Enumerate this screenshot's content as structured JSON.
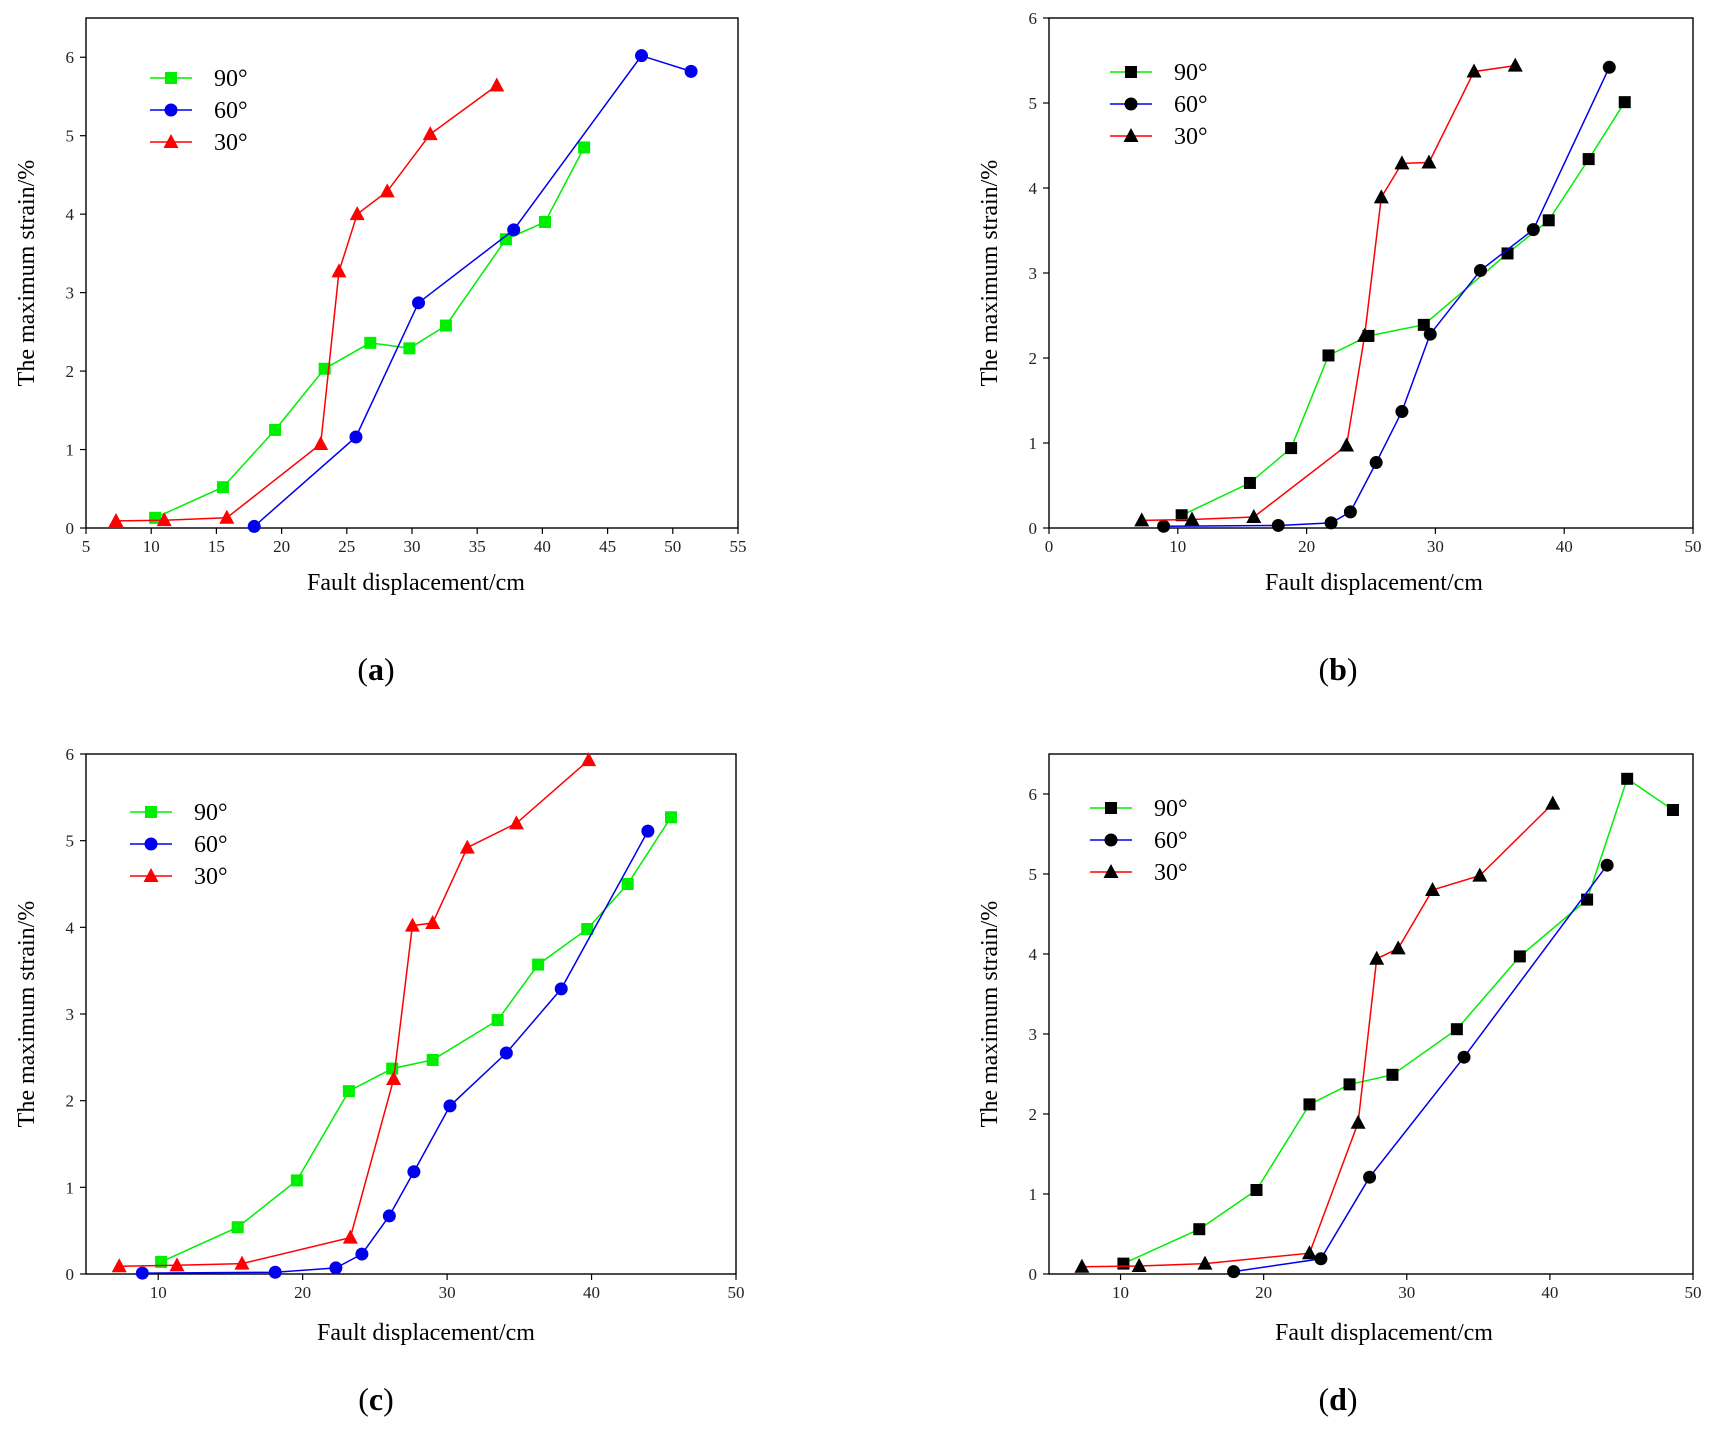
{
  "chart_data": [
    {
      "panel": "a",
      "type": "line",
      "caption_letter": "a",
      "xlabel": "Fault displacement/cm",
      "ylabel": "The maximum strain/%",
      "xlim": [
        5,
        55
      ],
      "ylim": [
        0,
        6.5
      ],
      "xticks": [
        5,
        10,
        15,
        20,
        25,
        30,
        35,
        40,
        45,
        50,
        55
      ],
      "yticks": [
        0,
        1,
        2,
        3,
        4,
        5,
        6
      ],
      "legend_position": "top-left",
      "series": [
        {
          "name": "90°",
          "color": "#00ee00",
          "marker": "square",
          "x": [
            10.3,
            15.5,
            19.5,
            23.3,
            26.8,
            29.8,
            32.6,
            37.2,
            40.2,
            43.2
          ],
          "y": [
            0.13,
            0.52,
            1.25,
            2.03,
            2.36,
            2.29,
            2.58,
            3.68,
            3.9,
            4.85
          ]
        },
        {
          "name": "60°",
          "color": "#0000ee",
          "marker": "circle",
          "x": [
            17.9,
            25.7,
            30.5,
            37.8,
            47.6,
            51.4
          ],
          "y": [
            0.02,
            1.16,
            2.87,
            3.8,
            6.02,
            5.82
          ]
        },
        {
          "name": "30°",
          "color": "#ff0000",
          "marker": "triangle",
          "x": [
            7.3,
            11.0,
            15.8,
            23.0,
            24.4,
            25.8,
            28.1,
            31.4,
            36.5
          ],
          "y": [
            0.09,
            0.1,
            0.13,
            1.07,
            3.27,
            4.0,
            4.29,
            5.02,
            5.64
          ]
        }
      ]
    },
    {
      "panel": "b",
      "type": "line",
      "caption_letter": "b",
      "xlabel": "Fault displacement/cm",
      "ylabel": "The maximum strain/%",
      "xlim": [
        0,
        50
      ],
      "ylim": [
        0,
        6
      ],
      "xticks": [
        0,
        10,
        20,
        30,
        40,
        50
      ],
      "yticks": [
        0,
        1,
        2,
        3,
        4,
        5,
        6
      ],
      "legend_position": "top-left",
      "series": [
        {
          "name": "90°",
          "color": "#00ee00",
          "marker": "square",
          "x": [
            10.3,
            15.6,
            18.8,
            21.7,
            24.8,
            29.1,
            35.6,
            38.8,
            41.9,
            44.7
          ],
          "y": [
            0.15,
            0.53,
            0.94,
            2.03,
            2.26,
            2.39,
            3.23,
            3.62,
            4.34,
            5.01
          ]
        },
        {
          "name": "60°",
          "color": "#0000ee",
          "marker": "circle",
          "x": [
            8.9,
            17.8,
            21.9,
            23.4,
            25.4,
            27.4,
            29.6,
            33.5,
            37.6,
            43.5
          ],
          "y": [
            0.02,
            0.03,
            0.06,
            0.19,
            0.77,
            1.37,
            2.28,
            3.03,
            3.51,
            5.42
          ]
        },
        {
          "name": "30°",
          "color": "#ff0000",
          "marker": "triangle",
          "x": [
            7.2,
            11.1,
            15.9,
            23.1,
            24.5,
            25.8,
            27.4,
            29.5,
            33.0,
            36.2
          ],
          "y": [
            0.09,
            0.1,
            0.13,
            0.97,
            2.26,
            3.89,
            4.29,
            4.3,
            5.37,
            5.44
          ]
        }
      ]
    },
    {
      "panel": "c",
      "type": "line",
      "caption_letter": "c",
      "xlabel": "Fault displacement/cm",
      "ylabel": "The maximum strain/%",
      "xlim": [
        5,
        50
      ],
      "ylim": [
        0,
        6
      ],
      "xticks": [
        10,
        20,
        30,
        40,
        50
      ],
      "yticks": [
        0,
        1,
        2,
        3,
        4,
        5,
        6
      ],
      "legend_position": "top-left",
      "series": [
        {
          "name": "90°",
          "color": "#00ee00",
          "marker": "square",
          "x": [
            10.2,
            15.5,
            19.6,
            23.2,
            26.2,
            29.0,
            33.5,
            36.3,
            39.7,
            42.5,
            45.5
          ],
          "y": [
            0.14,
            0.54,
            1.08,
            2.11,
            2.37,
            2.47,
            2.93,
            3.57,
            3.98,
            4.5,
            5.27
          ]
        },
        {
          "name": "60°",
          "color": "#0000ee",
          "marker": "circle",
          "x": [
            8.9,
            18.1,
            22.3,
            24.1,
            26.0,
            27.7,
            30.2,
            34.1,
            37.9,
            43.9
          ],
          "y": [
            0.01,
            0.02,
            0.07,
            0.23,
            0.67,
            1.18,
            1.94,
            2.55,
            3.29,
            5.11
          ]
        },
        {
          "name": "30°",
          "color": "#ff0000",
          "marker": "triangle",
          "x": [
            7.3,
            11.3,
            15.8,
            23.3,
            26.3,
            27.6,
            29.0,
            31.4,
            34.8,
            39.8
          ],
          "y": [
            0.09,
            0.1,
            0.12,
            0.42,
            2.25,
            4.02,
            4.05,
            4.92,
            5.2,
            5.93
          ]
        }
      ]
    },
    {
      "panel": "d",
      "type": "line",
      "caption_letter": "d",
      "xlabel": "Fault displacement/cm",
      "ylabel": "The maximum strain/%",
      "xlim": [
        5,
        50
      ],
      "ylim": [
        0,
        6.5
      ],
      "xticks": [
        10,
        20,
        30,
        40,
        50
      ],
      "yticks": [
        0,
        1,
        2,
        3,
        4,
        5,
        6
      ],
      "legend_position": "top-left",
      "series": [
        {
          "name": "90°",
          "color": "#00ee00",
          "marker": "square",
          "x": [
            10.2,
            15.5,
            19.5,
            23.2,
            26.0,
            29.0,
            33.5,
            37.9,
            42.6,
            45.4,
            48.6
          ],
          "y": [
            0.13,
            0.56,
            1.05,
            2.12,
            2.37,
            2.49,
            3.06,
            3.97,
            4.68,
            6.19,
            5.8
          ]
        },
        {
          "name": "60°",
          "color": "#0000ee",
          "marker": "circle",
          "x": [
            17.9,
            24.0,
            27.4,
            34.0,
            44.0
          ],
          "y": [
            0.03,
            0.19,
            1.21,
            2.71,
            5.11
          ]
        },
        {
          "name": "30°",
          "color": "#ff0000",
          "marker": "triangle",
          "x": [
            7.3,
            11.3,
            15.9,
            23.2,
            26.6,
            27.9,
            29.4,
            31.8,
            35.1,
            40.2
          ],
          "y": [
            0.09,
            0.1,
            0.13,
            0.26,
            1.89,
            3.94,
            4.07,
            4.8,
            4.98,
            5.88
          ]
        }
      ]
    }
  ]
}
